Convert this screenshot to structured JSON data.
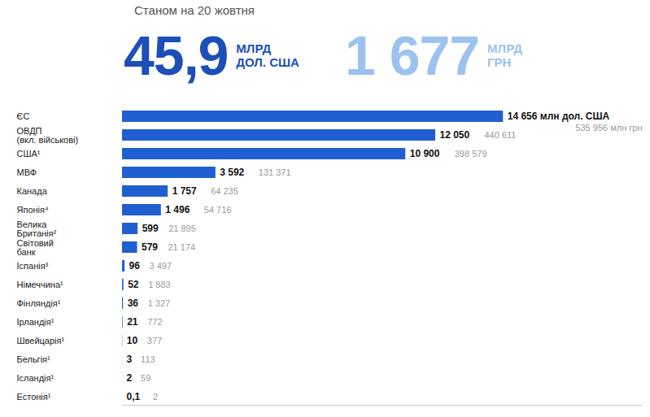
{
  "chart_data": {
    "type": "bar",
    "orientation": "horizontal",
    "subtitle": "Станом на 20 жовтня",
    "totals": [
      {
        "value": 45.9,
        "label": "45,9",
        "unit": "МЛРД ДОЛ. США"
      },
      {
        "value": 1677,
        "label": "1 677",
        "unit": "МЛРД ГРН"
      }
    ],
    "categories": [
      "ЄС",
      "ОВДП (вкл. військові)",
      "США¹",
      "МВФ",
      "Канада",
      "Японія⁴",
      "Велика Британія²",
      "Світовий банк",
      "Іспанія³",
      "Німеччина¹",
      "Фінляндія¹",
      "Ірландія¹",
      "Швейцарія¹",
      "Бельгія¹",
      "Ісландія¹",
      "Естонія¹"
    ],
    "values": [
      14656,
      12050,
      10900,
      3592,
      1757,
      1496,
      599,
      579,
      96,
      52,
      36,
      21,
      10,
      3,
      2,
      0.1
    ],
    "value_labels": [
      "14 656 млн дол. США",
      "12 050",
      "10 900",
      "3 592",
      "1 757",
      "1 496",
      "599",
      "579",
      "96",
      "52",
      "36",
      "21",
      "10",
      "3",
      "2",
      "0,1"
    ],
    "values_uah": [
      535956,
      440611,
      398579,
      131371,
      64235,
      54716,
      21895,
      21174,
      3497,
      1883,
      1327,
      772,
      377,
      113,
      59,
      2
    ],
    "value_labels_uah": [
      "535 956 млн грн",
      "440 611",
      "398 579",
      "131 371",
      "64 235",
      "54 716",
      "21 895",
      "21 174",
      "3 497",
      "1 883",
      "1 327",
      "772",
      "377",
      "113",
      "59",
      "2"
    ],
    "color": "#1f5fd0",
    "xlim": [
      0,
      20000
    ],
    "xticks": [],
    "grid": false,
    "data_labels": true,
    "tick_labels": "y"
  }
}
